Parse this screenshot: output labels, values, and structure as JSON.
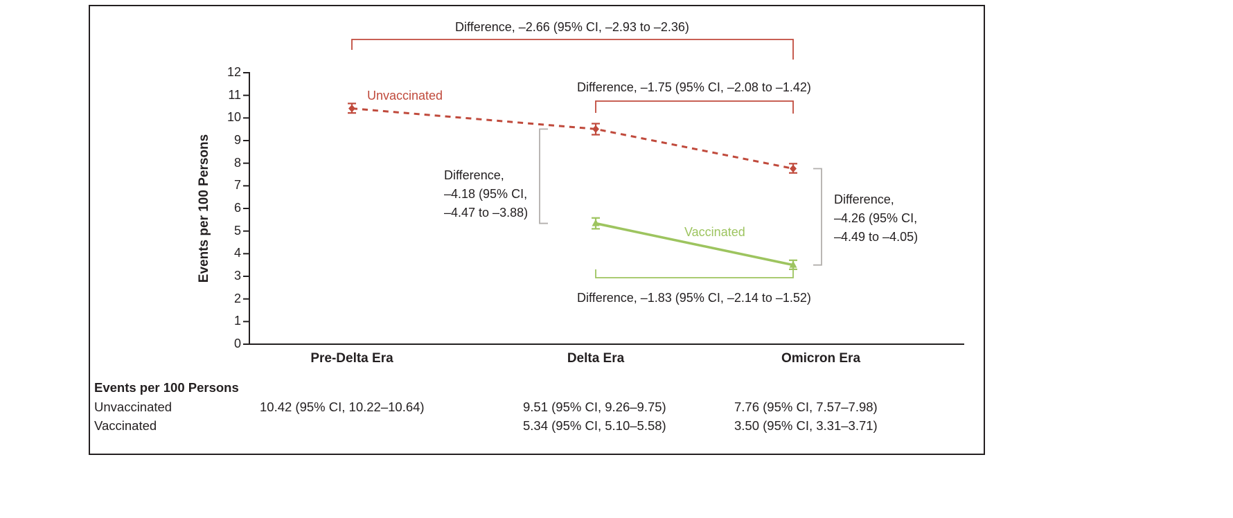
{
  "chart_data": {
    "type": "line",
    "title": "",
    "ylabel": "Events per 100 Persons",
    "xlabel": "",
    "ylim": [
      0,
      12
    ],
    "yticks": [
      0,
      1,
      2,
      3,
      4,
      5,
      6,
      7,
      8,
      9,
      10,
      11,
      12
    ],
    "grid": false,
    "legend_position": "inline",
    "categories": [
      "Pre-Delta Era",
      "Delta Era",
      "Omicron Era"
    ],
    "series": [
      {
        "name": "Unvaccinated",
        "color": "#c04a3c",
        "line_style": "dashed",
        "marker": "diamond",
        "values": [
          10.42,
          9.51,
          7.76
        ],
        "ci_low": [
          10.22,
          9.26,
          7.57
        ],
        "ci_high": [
          10.64,
          9.75,
          7.98
        ]
      },
      {
        "name": "Vaccinated",
        "color": "#9dc45f",
        "line_style": "solid",
        "marker": "triangle",
        "values": [
          null,
          5.34,
          3.5
        ],
        "ci_low": [
          null,
          5.1,
          3.31
        ],
        "ci_high": [
          null,
          5.58,
          3.71
        ]
      }
    ],
    "annotations": [
      {
        "id": "predelta-to-omicron-unvaccinated",
        "text": "Difference, –2.66 (95% CI, –2.93 to –2.36)"
      },
      {
        "id": "delta-to-omicron-unvaccinated",
        "text": "Difference, –1.75 (95% CI, –2.08 to –1.42)"
      },
      {
        "id": "delta-unvaccinated-vs-vaccinated",
        "text": "Difference,\n–4.18 (95% CI,\n–4.47 to –3.88)"
      },
      {
        "id": "omicron-unvaccinated-vs-vaccinated",
        "text": "Difference,\n–4.26 (95% CI,\n–4.49 to –4.05)"
      },
      {
        "id": "delta-to-omicron-vaccinated",
        "text": "Difference, –1.83 (95% CI, –2.14 to –1.52)"
      }
    ]
  },
  "table": {
    "header": "Events per 100 Persons",
    "rows": [
      {
        "label": "Unvaccinated",
        "values": [
          "10.42 (95% CI, 10.22–10.64)",
          "9.51 (95% CI, 9.26–9.75)",
          "7.76 (95% CI, 7.57–7.98)"
        ]
      },
      {
        "label": "Vaccinated",
        "values": [
          "",
          "5.34 (95% CI, 5.10–5.58)",
          "3.50 (95% CI, 3.31–3.71)"
        ]
      }
    ]
  },
  "colors": {
    "unvaccinated": "#c04a3c",
    "vaccinated": "#9dc45f",
    "bracket_gray": "#b2afac",
    "axis": "#231f20"
  }
}
